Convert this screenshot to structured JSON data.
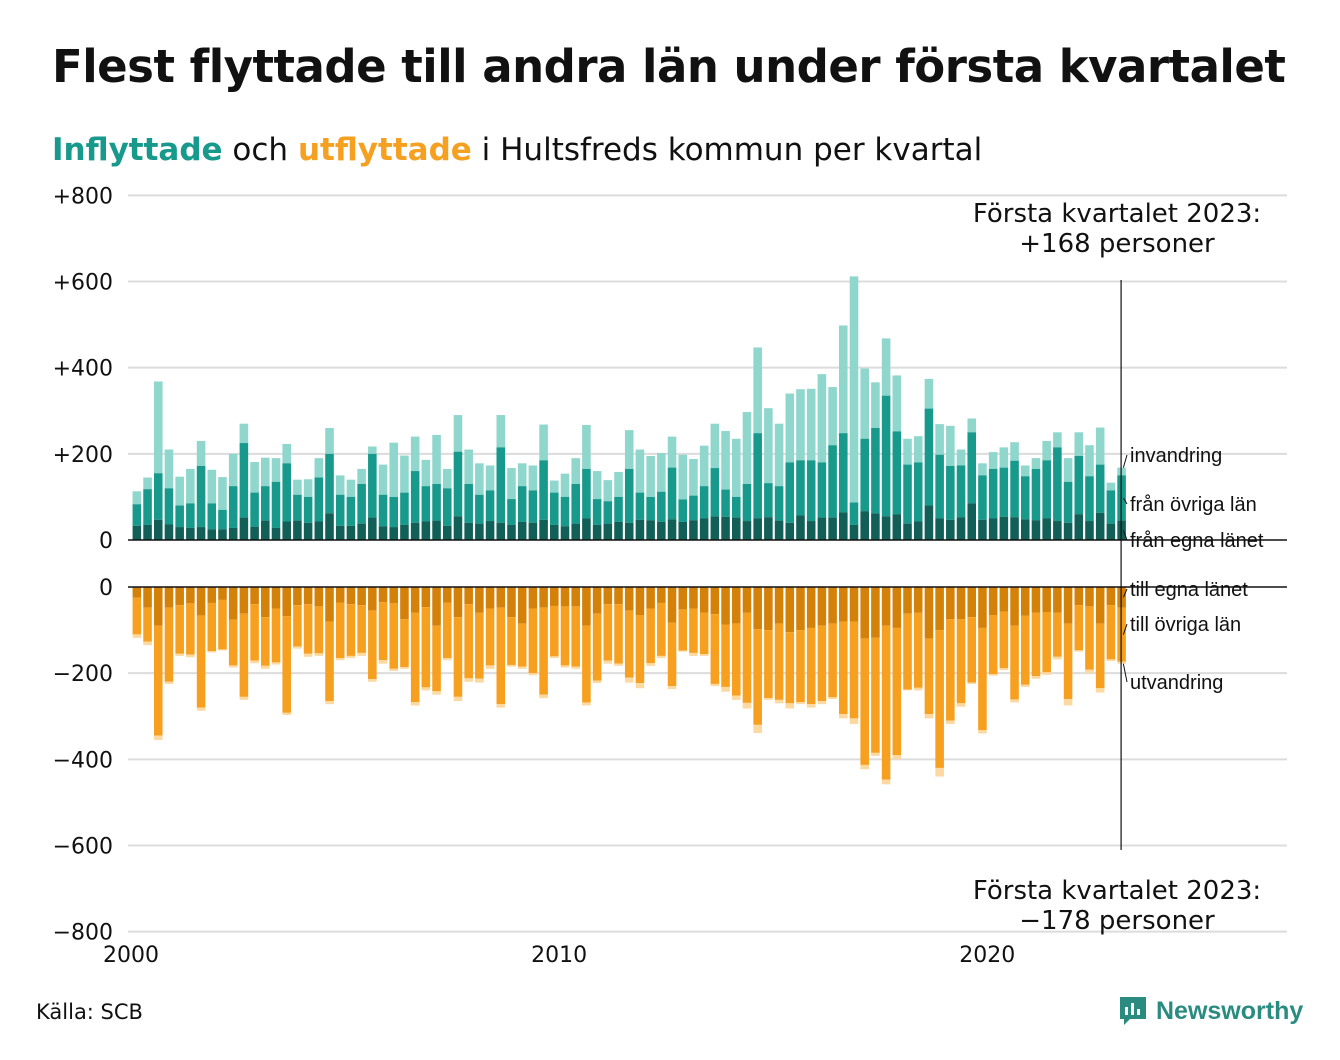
{
  "title": "Flest flyttade till andra län under första kvartalet",
  "subtitle": {
    "inflow_label": "Inflyttade",
    "joiner": " och ",
    "outflow_label": "utflyttade",
    "rest": " i Hultsfreds kommun per kvartal"
  },
  "source": "Källa: SCB",
  "brand": {
    "name": "Newsworthy",
    "icon": "newsworthy-logo-icon"
  },
  "colors": {
    "in_egna": "#125f57",
    "in_ovriga": "#17998c",
    "in_invandring": "#8fd6cc",
    "out_egna": "#d4810a",
    "out_ovriga": "#f7a01f",
    "out_utvandring": "#fbd9a0",
    "grid": "#dcdcdc",
    "axis": "#111111"
  },
  "annotations": {
    "top_line1": "Första kvartalet 2023:",
    "top_line2": "+168 personer",
    "bottom_line1": "Första kvartalet 2023:",
    "bottom_line2": "−178 personer"
  },
  "chart_data": {
    "type": "bar",
    "stacked": true,
    "x_axis": {
      "ticks": [
        2000,
        2010,
        2020
      ],
      "tick_labels": [
        "2000",
        "2010",
        "2020"
      ],
      "range": [
        2000,
        2027
      ]
    },
    "y_axis": {
      "top": {
        "range": [
          0,
          800
        ],
        "ticks": [
          0,
          200,
          400,
          600,
          800
        ],
        "tick_labels": [
          "0",
          "+200",
          "+400",
          "+600",
          "+800"
        ]
      },
      "bottom": {
        "range": [
          -800,
          0
        ],
        "ticks": [
          0,
          -200,
          -400,
          -600,
          -800
        ],
        "tick_labels": [
          "0",
          "−200",
          "−400",
          "−600",
          "−800"
        ]
      }
    },
    "grid": true,
    "legend": "inline labels at right end",
    "quarters_start": "2000 Q1",
    "inflow_series_names": [
      "från egna länet",
      "från övriga län",
      "invandring"
    ],
    "outflow_series_names": [
      "till egna länet",
      "till övriga län",
      "utvandring"
    ],
    "inflow_totals": [
      113,
      145,
      368,
      210,
      147,
      165,
      230,
      163,
      146,
      200,
      270,
      181,
      191,
      190,
      223,
      140,
      141,
      190,
      260,
      150,
      140,
      165,
      217,
      175,
      226,
      196,
      240,
      186,
      244,
      165,
      290,
      210,
      178,
      173,
      290,
      167,
      178,
      173,
      268,
      138,
      154,
      190,
      267,
      160,
      139,
      158,
      255,
      210,
      195,
      202,
      240,
      198,
      188,
      219,
      270,
      253,
      235,
      297,
      447,
      306,
      270,
      340,
      350,
      351,
      385,
      355,
      498,
      612,
      398,
      366,
      468,
      382,
      235,
      241,
      374,
      269,
      265,
      210,
      282,
      178,
      204,
      215,
      227,
      173,
      190,
      230,
      250,
      190,
      250,
      220,
      261,
      133,
      168
    ],
    "inflow_egna": [
      33,
      35,
      47,
      36,
      30,
      28,
      30,
      25,
      25,
      28,
      52,
      31,
      45,
      28,
      43,
      45,
      40,
      43,
      62,
      33,
      33,
      38,
      52,
      32,
      30,
      35,
      40,
      43,
      45,
      33,
      55,
      40,
      38,
      44,
      40,
      35,
      42,
      40,
      47,
      35,
      32,
      38,
      50,
      35,
      38,
      42,
      40,
      47,
      46,
      42,
      48,
      42,
      46,
      50,
      55,
      54,
      52,
      44,
      50,
      53,
      45,
      40,
      57,
      44,
      52,
      52,
      64,
      35,
      67,
      62,
      55,
      60,
      38,
      43,
      80,
      50,
      47,
      53,
      85,
      47,
      50,
      54,
      53,
      48,
      46,
      50,
      44,
      40,
      60,
      44,
      63,
      38,
      45
    ],
    "inflow_ovriga": [
      83,
      118,
      155,
      120,
      80,
      85,
      172,
      85,
      70,
      125,
      225,
      110,
      125,
      135,
      178,
      105,
      100,
      145,
      200,
      105,
      100,
      130,
      200,
      105,
      100,
      110,
      160,
      125,
      130,
      120,
      205,
      130,
      105,
      115,
      215,
      95,
      125,
      115,
      185,
      110,
      100,
      130,
      165,
      95,
      90,
      100,
      165,
      110,
      100,
      112,
      168,
      94,
      103,
      125,
      167,
      117,
      100,
      130,
      248,
      132,
      125,
      180,
      185,
      185,
      180,
      220,
      248,
      87,
      235,
      260,
      335,
      252,
      175,
      180,
      305,
      198,
      172,
      173,
      250,
      150,
      165,
      168,
      184,
      148,
      165,
      185,
      215,
      135,
      195,
      148,
      175,
      115,
      150
    ],
    "outflow_totals": [
      118,
      135,
      355,
      225,
      160,
      163,
      287,
      152,
      147,
      187,
      262,
      177,
      190,
      180,
      297,
      143,
      162,
      160,
      272,
      170,
      165,
      160,
      220,
      178,
      195,
      190,
      275,
      240,
      250,
      170,
      265,
      220,
      222,
      190,
      280,
      185,
      190,
      205,
      258,
      165,
      187,
      190,
      275,
      223,
      178,
      183,
      222,
      235,
      183,
      165,
      237,
      150,
      160,
      160,
      230,
      243,
      262,
      282,
      339,
      262,
      270,
      282,
      272,
      280,
      272,
      260,
      305,
      318,
      423,
      392,
      458,
      400,
      240,
      240,
      305,
      440,
      318,
      278,
      225,
      340,
      206,
      193,
      268,
      232,
      213,
      204,
      168,
      275,
      150,
      200,
      245,
      172,
      178
    ],
    "outflow_egna": [
      25,
      48,
      90,
      48,
      42,
      38,
      66,
      37,
      30,
      76,
      62,
      40,
      70,
      50,
      68,
      42,
      40,
      45,
      80,
      36,
      40,
      42,
      55,
      35,
      38,
      75,
      60,
      47,
      90,
      36,
      70,
      40,
      60,
      50,
      48,
      70,
      85,
      50,
      48,
      44,
      45,
      45,
      90,
      62,
      40,
      40,
      55,
      65,
      50,
      37,
      83,
      52,
      50,
      60,
      63,
      87,
      85,
      60,
      98,
      100,
      85,
      105,
      100,
      95,
      90,
      85,
      80,
      80,
      120,
      118,
      90,
      95,
      62,
      60,
      120,
      100,
      75,
      75,
      70,
      95,
      65,
      57,
      90,
      67,
      60,
      58,
      60,
      85,
      42,
      45,
      85,
      42,
      48
    ],
    "outflow_ovriga": [
      110,
      127,
      345,
      220,
      155,
      157,
      280,
      149,
      145,
      182,
      255,
      171,
      183,
      175,
      292,
      138,
      155,
      154,
      265,
      165,
      160,
      153,
      214,
      170,
      190,
      186,
      267,
      233,
      242,
      165,
      255,
      212,
      213,
      182,
      272,
      181,
      185,
      200,
      250,
      161,
      182,
      185,
      268,
      217,
      171,
      178,
      210,
      223,
      177,
      160,
      230,
      148,
      153,
      156,
      225,
      232,
      252,
      269,
      320,
      258,
      262,
      270,
      267,
      272,
      265,
      256,
      295,
      305,
      413,
      385,
      447,
      390,
      238,
      234,
      295,
      420,
      310,
      270,
      222,
      332,
      202,
      188,
      261,
      227,
      207,
      198,
      162,
      260,
      147,
      192,
      235,
      168,
      173
    ]
  }
}
